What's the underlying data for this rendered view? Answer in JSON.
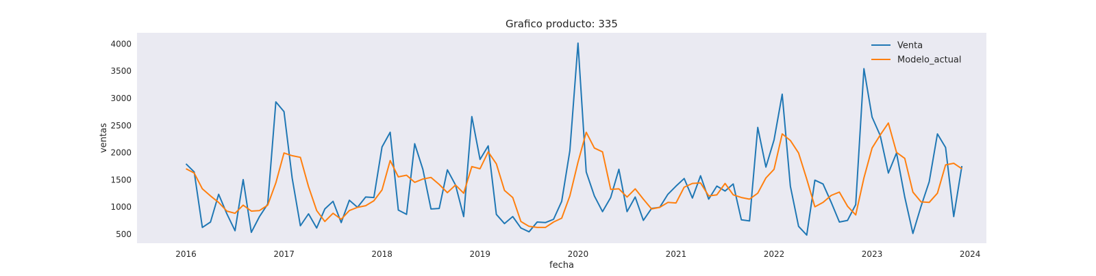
{
  "chart_data": {
    "type": "line",
    "title": "Grafico producto: 335",
    "xlabel": "fecha",
    "ylabel": "ventas",
    "x_start": "2016-01",
    "x_frequency": "monthly",
    "xlim": [
      "2015-07",
      "2024-03"
    ],
    "ylim": [
      330,
      4200
    ],
    "x_ticks": [
      "2016",
      "2017",
      "2018",
      "2019",
      "2020",
      "2021",
      "2022",
      "2023",
      "2024"
    ],
    "y_ticks": [
      500,
      1000,
      1500,
      2000,
      2500,
      3000,
      3500,
      4000
    ],
    "grid": false,
    "background": "#eaeaf2",
    "legend_position": "top-right",
    "series": [
      {
        "name": "Venta",
        "color": "#1f77b4",
        "values": [
          1790,
          1640,
          620,
          720,
          1230,
          870,
          560,
          1500,
          530,
          820,
          1050,
          2930,
          2750,
          1530,
          650,
          870,
          610,
          960,
          1100,
          710,
          1120,
          990,
          1180,
          1170,
          2100,
          2370,
          940,
          860,
          2160,
          1690,
          960,
          970,
          1680,
          1400,
          820,
          2660,
          1870,
          2120,
          860,
          690,
          820,
          610,
          540,
          720,
          710,
          770,
          1100,
          2030,
          4010,
          1640,
          1200,
          910,
          1170,
          1690,
          910,
          1180,
          750,
          970,
          990,
          1230,
          1380,
          1520,
          1160,
          1570,
          1140,
          1380,
          1290,
          1420,
          760,
          740,
          2460,
          1730,
          2230,
          3070,
          1380,
          640,
          480,
          1490,
          1420,
          1080,
          720,
          750,
          1040,
          3540,
          2650,
          2310,
          1620,
          1990,
          1180,
          510,
          1010,
          1460,
          2340,
          2090,
          820,
          1750
        ]
      },
      {
        "name": "Modelo_actual",
        "color": "#ff7f0e",
        "values": [
          1700,
          1620,
          1330,
          1200,
          1080,
          920,
          880,
          1030,
          920,
          930,
          1030,
          1440,
          1990,
          1940,
          1910,
          1370,
          930,
          730,
          880,
          770,
          930,
          990,
          1020,
          1110,
          1310,
          1850,
          1550,
          1580,
          1450,
          1510,
          1540,
          1410,
          1260,
          1400,
          1250,
          1740,
          1700,
          2010,
          1790,
          1300,
          1170,
          730,
          640,
          620,
          620,
          720,
          790,
          1200,
          1820,
          2370,
          2080,
          2010,
          1320,
          1330,
          1180,
          1330,
          1140,
          960,
          990,
          1080,
          1070,
          1360,
          1430,
          1440,
          1200,
          1220,
          1430,
          1220,
          1170,
          1140,
          1250,
          1530,
          1690,
          2340,
          2220,
          1990,
          1510,
          1000,
          1080,
          1210,
          1270,
          1010,
          850,
          1530,
          2080,
          2320,
          2540,
          2000,
          1890,
          1270,
          1090,
          1080,
          1250,
          1770,
          1800,
          1700
        ]
      }
    ]
  }
}
